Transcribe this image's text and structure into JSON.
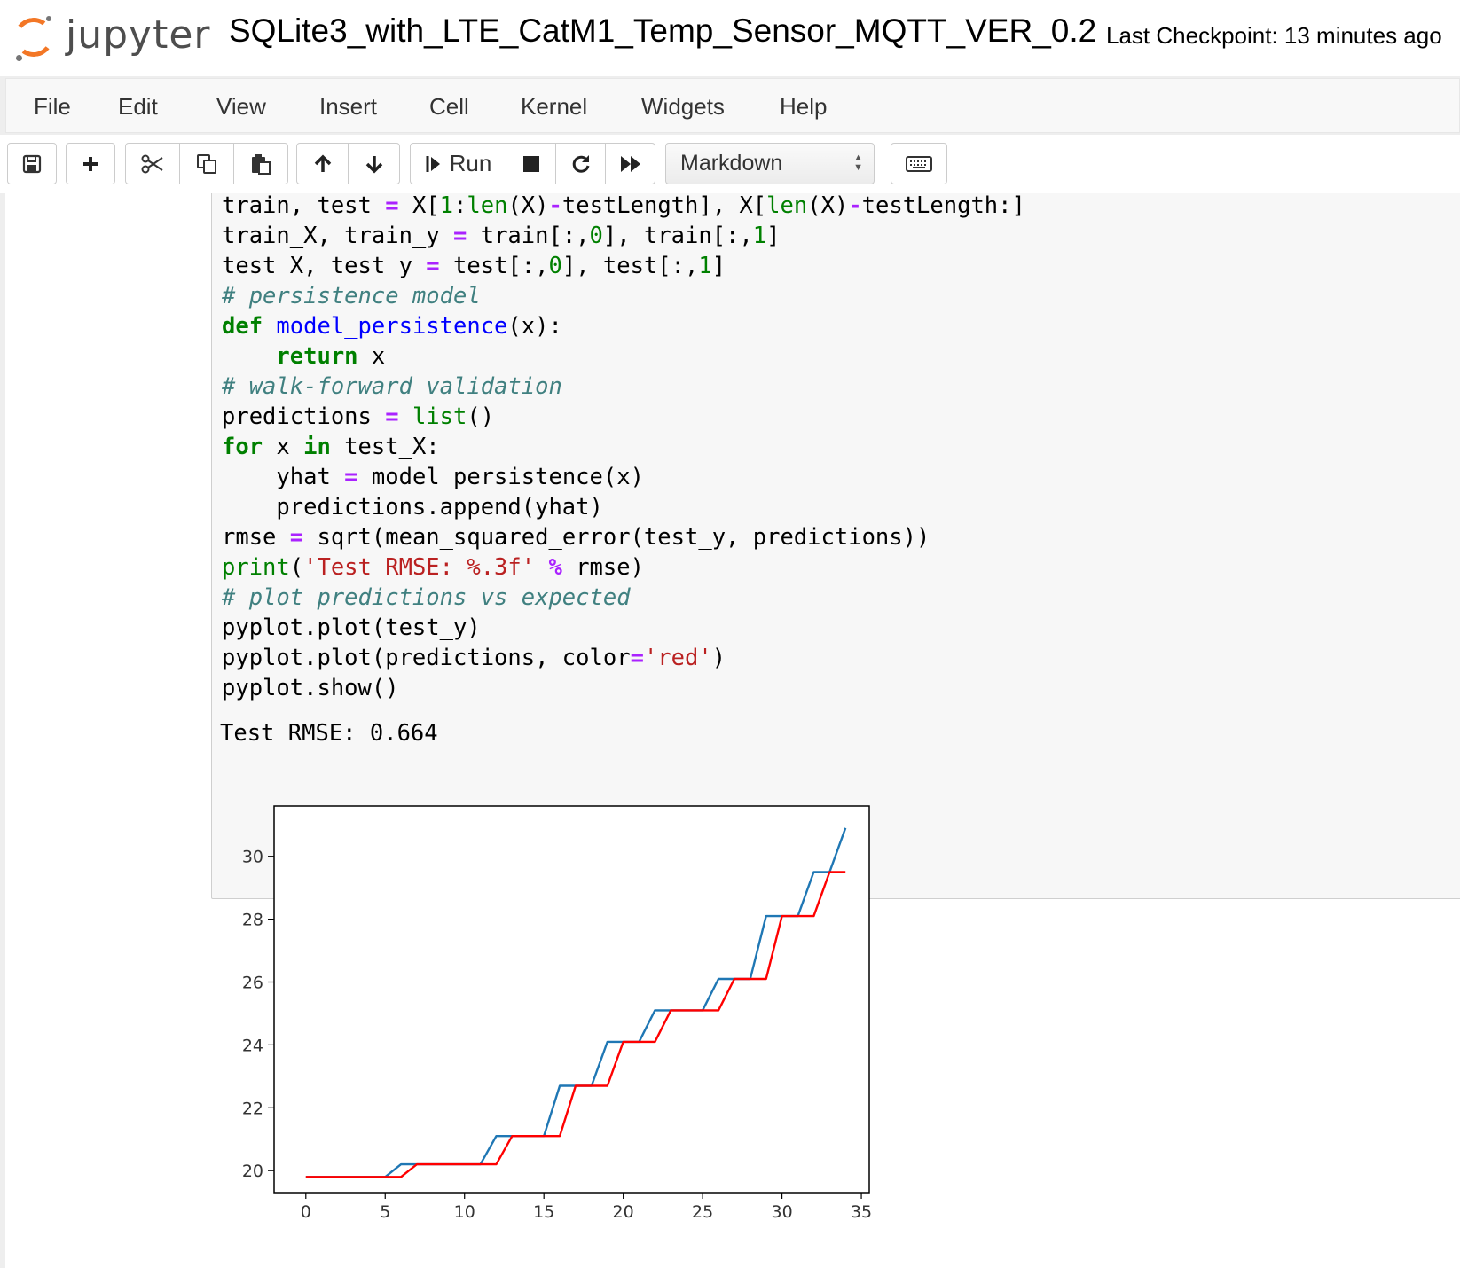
{
  "header": {
    "logo_text": "jupyter",
    "notebook_title": "SQLite3_with_LTE_CatM1_Temp_Sensor_MQTT_VER_0.2",
    "checkpoint": "Last Checkpoint: 13 minutes ago"
  },
  "menu": [
    "File",
    "Edit",
    "View",
    "Insert",
    "Cell",
    "Kernel",
    "Widgets",
    "Help"
  ],
  "toolbar": {
    "run_label": "Run",
    "cell_type": "Markdown",
    "icons": [
      "save-icon",
      "plus-icon",
      "scissors-icon",
      "copy-icon",
      "paste-icon",
      "arrow-up-icon",
      "arrow-down-icon",
      "run-icon",
      "stop-icon",
      "restart-icon",
      "fast-forward-icon",
      "keyboard-icon"
    ]
  },
  "code": {
    "l1a": "train, test ",
    "l1b": "=",
    "l1c": " X[",
    "l1d": "1",
    "l1e": ":",
    "l1f": "len",
    "l1g": "(X)",
    "l1h": "-",
    "l1i": "testLength], X[",
    "l1j": "len",
    "l1k": "(X)",
    "l1l": "-",
    "l1m": "testLength:]",
    "l2a": "train_X, train_y ",
    "l2b": "=",
    "l2c": " train[:,",
    "l2d": "0",
    "l2e": "], train[:,",
    "l2f": "1",
    "l2g": "]",
    "l3a": "test_X, test_y ",
    "l3b": "=",
    "l3c": " test[:,",
    "l3d": "0",
    "l3e": "], test[:,",
    "l3f": "1",
    "l3g": "]",
    "l4": "# persistence model",
    "l5a": "def",
    "l5b": " ",
    "l5c": "model_persistence",
    "l5d": "(x):",
    "l6a": "    ",
    "l6b": "return",
    "l6c": " x",
    "l7": "# walk-forward validation",
    "l8a": "predictions ",
    "l8b": "=",
    "l8c": " ",
    "l8d": "list",
    "l8e": "()",
    "l9a": "for",
    "l9b": " x ",
    "l9c": "in",
    "l9d": " test_X:",
    "l10a": "    yhat ",
    "l10b": "=",
    "l10c": " model_persistence(x)",
    "l11": "    predictions.append(yhat)",
    "l12a": "rmse ",
    "l12b": "=",
    "l12c": " sqrt(mean_squared_error(test_y, predictions))",
    "l13a": "print",
    "l13b": "(",
    "l13c": "'Test RMSE: %.3f'",
    "l13d": " ",
    "l13e": "%",
    "l13f": " rmse)",
    "l14": "# plot predictions vs expected",
    "l15": "pyplot.plot(test_y)",
    "l16a": "pyplot.plot(predictions, color",
    "l16b": "=",
    "l16c": "'red'",
    "l16d": ")",
    "l17": "pyplot.show()"
  },
  "output": {
    "text": "Test RMSE: 0.664"
  },
  "chart_data": {
    "type": "line",
    "title": "",
    "xlabel": "",
    "ylabel": "",
    "xlim": [
      -2,
      35.5
    ],
    "ylim": [
      19.3,
      31.6
    ],
    "xticks": [
      0,
      5,
      10,
      15,
      20,
      25,
      30,
      35
    ],
    "yticks": [
      20,
      22,
      24,
      26,
      28,
      30
    ],
    "grid": false,
    "legend": "none",
    "series": [
      {
        "color": "#1f77b4",
        "x": [
          0,
          1,
          2,
          3,
          4,
          5,
          6,
          7,
          8,
          9,
          10,
          11,
          12,
          13,
          14,
          15,
          16,
          17,
          18,
          19,
          20,
          21,
          22,
          23,
          24,
          25,
          26,
          27,
          28,
          29,
          30,
          31,
          32,
          33,
          34
        ],
        "values": [
          19.8,
          19.8,
          19.8,
          19.8,
          19.8,
          19.8,
          20.2,
          20.2,
          20.2,
          20.2,
          20.2,
          20.2,
          21.1,
          21.1,
          21.1,
          21.1,
          22.7,
          22.7,
          22.7,
          24.1,
          24.1,
          24.1,
          25.1,
          25.1,
          25.1,
          25.1,
          26.1,
          26.1,
          26.1,
          28.1,
          28.1,
          28.1,
          29.5,
          29.5,
          30.9
        ]
      },
      {
        "color": "#ff0000",
        "x": [
          0,
          1,
          2,
          3,
          4,
          5,
          6,
          7,
          8,
          9,
          10,
          11,
          12,
          13,
          14,
          15,
          16,
          17,
          18,
          19,
          20,
          21,
          22,
          23,
          24,
          25,
          26,
          27,
          28,
          29,
          30,
          31,
          32,
          33,
          34
        ],
        "values": [
          19.8,
          19.8,
          19.8,
          19.8,
          19.8,
          19.8,
          19.8,
          20.2,
          20.2,
          20.2,
          20.2,
          20.2,
          20.2,
          21.1,
          21.1,
          21.1,
          21.1,
          22.7,
          22.7,
          22.7,
          24.1,
          24.1,
          24.1,
          25.1,
          25.1,
          25.1,
          25.1,
          26.1,
          26.1,
          26.1,
          28.1,
          28.1,
          28.1,
          29.5,
          29.5
        ]
      }
    ]
  }
}
